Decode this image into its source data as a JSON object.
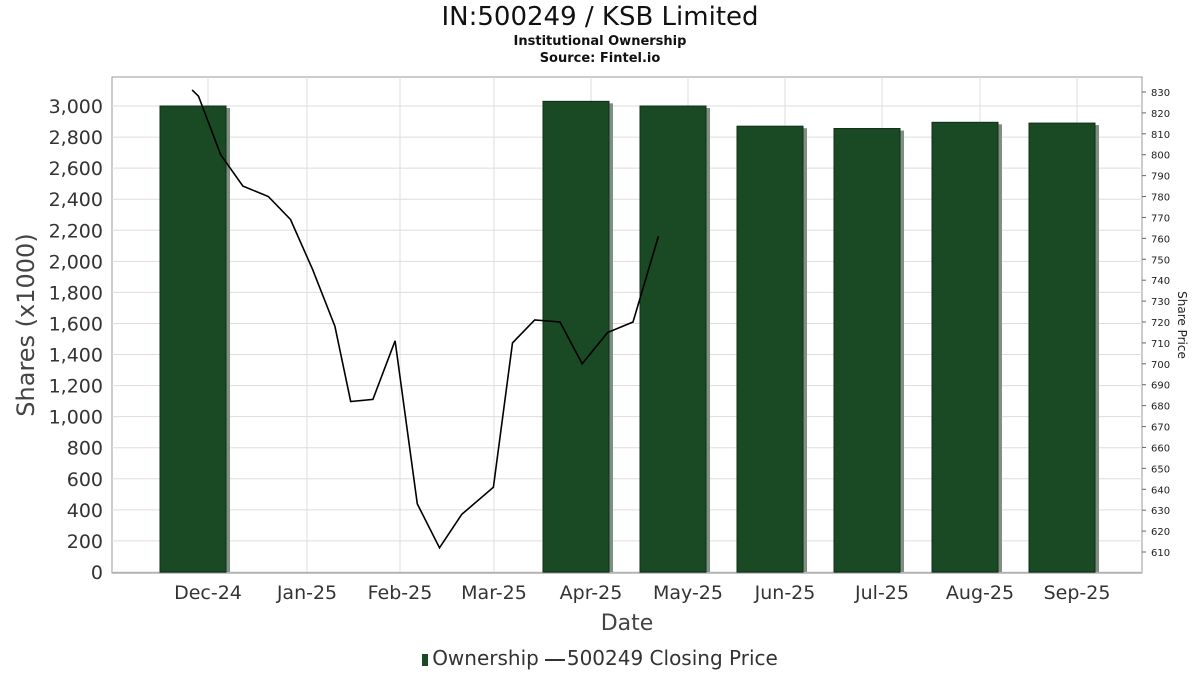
{
  "header": {
    "title": "IN:500249 / KSB Limited",
    "subtitle1": "Institutional Ownership",
    "subtitle2": "Source: Fintel.io"
  },
  "legend": {
    "ownership_label": "Ownership",
    "price_label": "500249 Closing Price"
  },
  "colors": {
    "bar": "#1a4a24",
    "bar_shadow": "#7f8f82",
    "line": "#000000",
    "grid": "#dddddd"
  },
  "chart_data": {
    "type": "bar",
    "title": "IN:500249 / KSB Limited",
    "xlabel": "Date",
    "ylabel": "Shares (x1000)",
    "y2label": "Share Price",
    "ylim": [
      0,
      3200
    ],
    "y2lim": [
      600,
      835
    ],
    "yticks": [
      0,
      200,
      400,
      600,
      800,
      1000,
      1200,
      1400,
      1600,
      1800,
      2000,
      2200,
      2400,
      2600,
      2800,
      3000
    ],
    "yticklabels": [
      "0",
      "200",
      "400",
      "600",
      "800",
      "1,000",
      "1,200",
      "1,400",
      "1,600",
      "1,800",
      "2,000",
      "2,200",
      "2,400",
      "2,600",
      "2,800",
      "3,000"
    ],
    "y2ticks": [
      610,
      620,
      630,
      640,
      650,
      660,
      670,
      680,
      690,
      700,
      710,
      720,
      730,
      740,
      750,
      760,
      770,
      780,
      790,
      800,
      810,
      820,
      830
    ],
    "xticklabels": [
      "Dec-24",
      "Jan-25",
      "Feb-25",
      "Mar-25",
      "Apr-25",
      "May-25",
      "Jun-25",
      "Jul-25",
      "Aug-25",
      "Sep-25"
    ],
    "grid": true,
    "legend_position": "bottom",
    "series": [
      {
        "name": "Ownership",
        "type": "bar",
        "x": [
          "Dec-24",
          "Apr-25",
          "May-25",
          "Jun-25",
          "Jul-25",
          "Aug-25",
          "Sep-25"
        ],
        "values": [
          3000,
          3030,
          3000,
          2870,
          2855,
          2895,
          2890
        ]
      },
      {
        "name": "500249 Closing Price",
        "type": "line",
        "axis": "right",
        "x": [
          "2024-11-26",
          "2024-11-28",
          "2024-12-05",
          "2024-12-12",
          "2024-12-20",
          "2024-12-27",
          "2025-01-03",
          "2025-01-10",
          "2025-01-15",
          "2025-01-22",
          "2025-01-29",
          "2025-02-05",
          "2025-02-12",
          "2025-02-19",
          "2025-03-01",
          "2025-03-07",
          "2025-03-14",
          "2025-03-22",
          "2025-03-29",
          "2025-04-06",
          "2025-04-14",
          "2025-04-22"
        ],
        "values": [
          831,
          828,
          800,
          785,
          780,
          769,
          745,
          718,
          682,
          683,
          711,
          633,
          612,
          628,
          641,
          710,
          721,
          720,
          700,
          715,
          720,
          761
        ]
      }
    ]
  }
}
